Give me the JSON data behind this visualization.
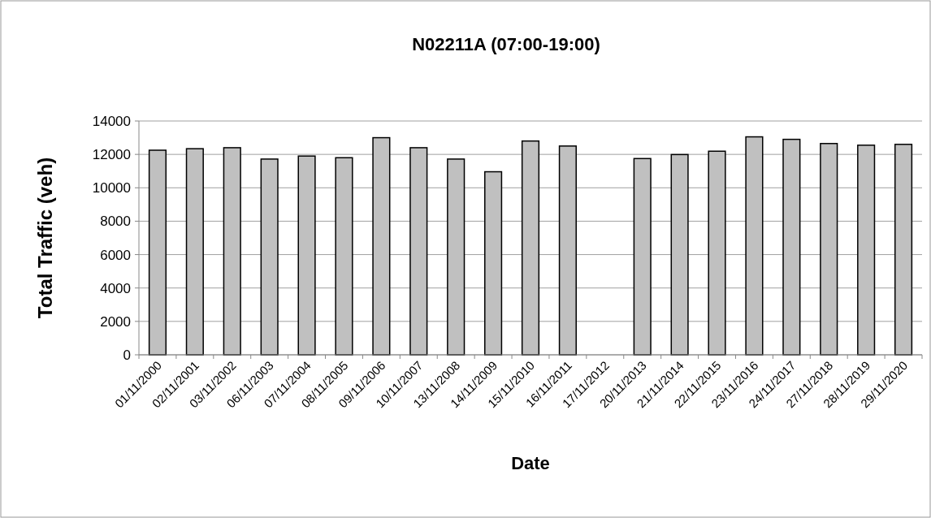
{
  "chart_data": {
    "type": "bar",
    "title": "N02211A (07:00-19:00)",
    "xlabel": "Date",
    "ylabel": "Total Traffic (veh)",
    "categories": [
      "01/11/2000",
      "02/11/2001",
      "03/11/2002",
      "06/11/2003",
      "07/11/2004",
      "08/11/2005",
      "09/11/2006",
      "10/11/2007",
      "13/11/2008",
      "14/11/2009",
      "15/11/2010",
      "16/11/2011",
      "17/11/2012",
      "20/11/2013",
      "21/11/2014",
      "22/11/2015",
      "23/11/2016",
      "24/11/2017",
      "27/11/2018",
      "28/11/2019",
      "29/11/2020"
    ],
    "values": [
      12250,
      12340,
      12400,
      11720,
      11900,
      11800,
      13000,
      12400,
      11720,
      10960,
      12800,
      12500,
      null,
      11750,
      11990,
      12190,
      13050,
      12900,
      12650,
      12550,
      12600
    ],
    "color": "#c0c0c0",
    "ylim": [
      0,
      14000
    ],
    "yticks": [
      0,
      2000,
      4000,
      6000,
      8000,
      10000,
      12000,
      14000
    ],
    "grid": "y"
  }
}
